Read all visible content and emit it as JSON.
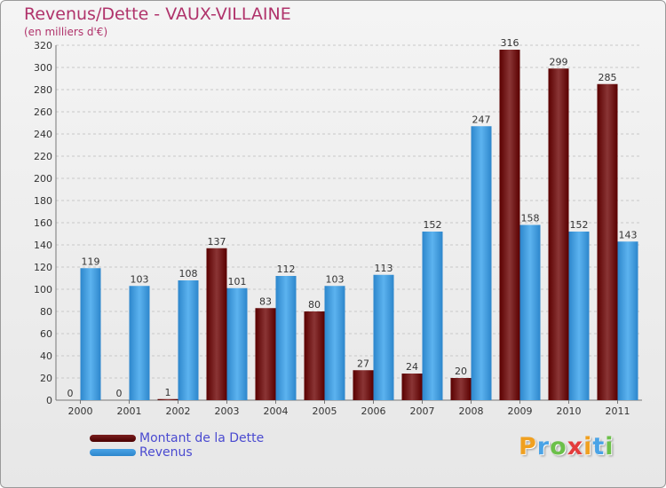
{
  "chart_data": {
    "type": "bar",
    "title": "Revenus/Dette - VAUX-VILLAINE",
    "subtitle": "(en milliers d'€)",
    "categories": [
      "2000",
      "2001",
      "2002",
      "2003",
      "2004",
      "2005",
      "2006",
      "2007",
      "2008",
      "2009",
      "2010",
      "2011"
    ],
    "series": [
      {
        "name": "Montant de la Dette",
        "color": "#7a1e1e",
        "values": [
          0,
          0,
          1,
          137,
          83,
          80,
          27,
          24,
          20,
          316,
          299,
          285
        ]
      },
      {
        "name": "Revenus",
        "color": "#4aa3e6",
        "values": [
          119,
          103,
          108,
          101,
          112,
          103,
          113,
          152,
          247,
          158,
          152,
          143
        ]
      }
    ],
    "ylim": [
      0,
      320
    ],
    "yticks": [
      0,
      20,
      40,
      60,
      80,
      100,
      120,
      140,
      160,
      180,
      200,
      220,
      240,
      260,
      280,
      300,
      320
    ],
    "grid": true,
    "legend": "bottom-left"
  },
  "logo": {
    "letters": [
      "P",
      "r",
      "o",
      "x",
      "i",
      "t",
      "i"
    ],
    "colors": [
      "#f0a020",
      "#4aa3e6",
      "#6cc04a",
      "#e33b3b",
      "#f0a020",
      "#4aa3e6",
      "#6cc04a"
    ]
  }
}
